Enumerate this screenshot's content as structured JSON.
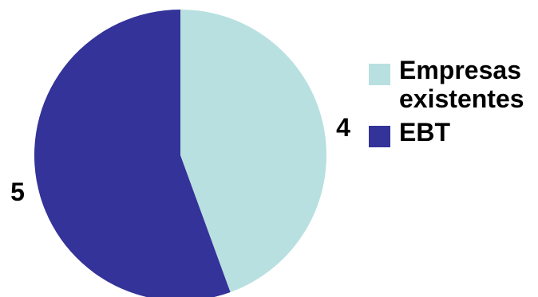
{
  "chart_data": {
    "type": "pie",
    "slices": [
      {
        "label": "Empresas existentes",
        "value": 4,
        "color": "#b9e0e0"
      },
      {
        "label": "EBT",
        "value": 5,
        "color": "#333399"
      }
    ],
    "data_labels": [
      "4",
      "5"
    ],
    "legend_position": "right",
    "start_angle_deg": 0,
    "direction": "clockwise"
  },
  "legend": {
    "items": [
      {
        "label": "Empresas existentes",
        "color": "#b9e0e0"
      },
      {
        "label": "EBT",
        "color": "#333399"
      }
    ]
  }
}
